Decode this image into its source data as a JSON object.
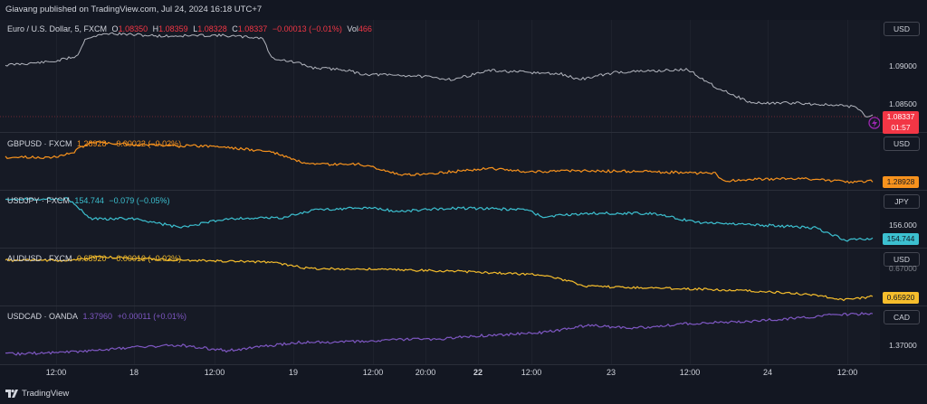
{
  "header": {
    "publish_text": "Giavang published on TradingView.com, Jul 24, 2024 16:18 UTC+7"
  },
  "main": {
    "symbol": "Euro / U.S. Dollar, 5, FXCM",
    "o_label": "O",
    "o": "1.08350",
    "h_label": "H",
    "h": "1.08359",
    "l_label": "L",
    "l": "1.08328",
    "c_label": "C",
    "c": "1.08337",
    "change": "−0.00013 (−0.01%)",
    "vol_label": "Vol",
    "vol": "466",
    "currency": "USD",
    "ticks": [
      "1.09000",
      "1.08500"
    ],
    "last_price": "1.08337",
    "countdown": "01:57",
    "color": "#787b86"
  },
  "overlays": [
    {
      "symbol": "GBPUSD · FXCM",
      "price": "1.28928",
      "change": "−0.00022 (−0.02%)",
      "currency": "USD",
      "last": "1.28928",
      "color": "#f7921d",
      "ticks": []
    },
    {
      "symbol": "USDJPY · FXCM",
      "price": "154.744",
      "change": "−0.079 (−0.05%)",
      "currency": "JPY",
      "last": "154.744",
      "color": "#3cc0d0",
      "ticks": [
        "156.000"
      ]
    },
    {
      "symbol": "AUDUSD · FXCM",
      "price": "0.65920",
      "change": "−0.00016 (−0.02%)",
      "currency": "USD",
      "last": "0.65920",
      "color": "#f5bd2c",
      "ticks": [
        "0.67000"
      ]
    },
    {
      "symbol": "USDCAD · OANDA",
      "price": "1.37960",
      "change": "+0.00011 (+0.01%)",
      "currency": "CAD",
      "last": "",
      "color": "#7e57c2",
      "ticks": [
        "1.37000"
      ]
    }
  ],
  "time_axis": [
    "12:00",
    "18",
    "12:00",
    "19",
    "12:00",
    "20:00",
    "22",
    "12:00",
    "23",
    "12:00",
    "24",
    "12:00"
  ],
  "footer": {
    "brand": "TradingView"
  }
}
